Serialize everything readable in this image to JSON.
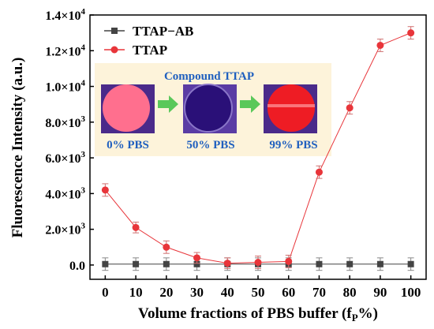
{
  "chart_data": {
    "type": "line",
    "xlabel": "Volume fractions of PBS buffer (f",
    "xlabel_sub": "P",
    "xlabel_end": "%)",
    "ylabel": "Fluorescence Intensity (a.u.)",
    "x": [
      0,
      10,
      20,
      30,
      40,
      50,
      60,
      70,
      80,
      90,
      100
    ],
    "xlim": [
      -5,
      105
    ],
    "ylim": [
      -800,
      14000
    ],
    "xticks": [
      0,
      10,
      20,
      30,
      40,
      50,
      60,
      70,
      80,
      90,
      100
    ],
    "yticks": [
      {
        "value": 0,
        "label": "0.0"
      },
      {
        "value": 2000,
        "mantissa": "2.0",
        "exp": "3"
      },
      {
        "value": 4000,
        "mantissa": "4.0",
        "exp": "3"
      },
      {
        "value": 6000,
        "mantissa": "6.0",
        "exp": "3"
      },
      {
        "value": 8000,
        "mantissa": "8.0",
        "exp": "3"
      },
      {
        "value": 10000,
        "mantissa": "1.0",
        "exp": "4"
      },
      {
        "value": 12000,
        "mantissa": "1.2",
        "exp": "4"
      },
      {
        "value": 14000,
        "mantissa": "1.4",
        "exp": "4"
      }
    ],
    "tick_times": "×10",
    "legend_position": "top-left",
    "series": [
      {
        "name": "TTAP−AB",
        "color": "#444444",
        "marker": "square",
        "values": [
          50,
          50,
          50,
          50,
          50,
          50,
          50,
          50,
          50,
          50,
          50
        ],
        "errors": [
          350,
          350,
          350,
          350,
          350,
          350,
          350,
          350,
          350,
          350,
          350
        ]
      },
      {
        "name": "TTAP",
        "color": "#e8353a",
        "marker": "circle",
        "values": [
          4200,
          2100,
          1000,
          400,
          100,
          150,
          200,
          5200,
          8800,
          12300,
          13000
        ],
        "errors": [
          350,
          300,
          350,
          300,
          300,
          350,
          350,
          350,
          350,
          350,
          350
        ]
      }
    ],
    "inset": {
      "title": "Compound TTAP",
      "labels": [
        "0% PBS",
        "50% PBS",
        "99% PBS"
      ],
      "well_colors": [
        "#ff6f8e",
        "#2a1078",
        "#ee1c24"
      ],
      "background": "#fdf3da",
      "arrow_color": "#5ac85a"
    }
  }
}
